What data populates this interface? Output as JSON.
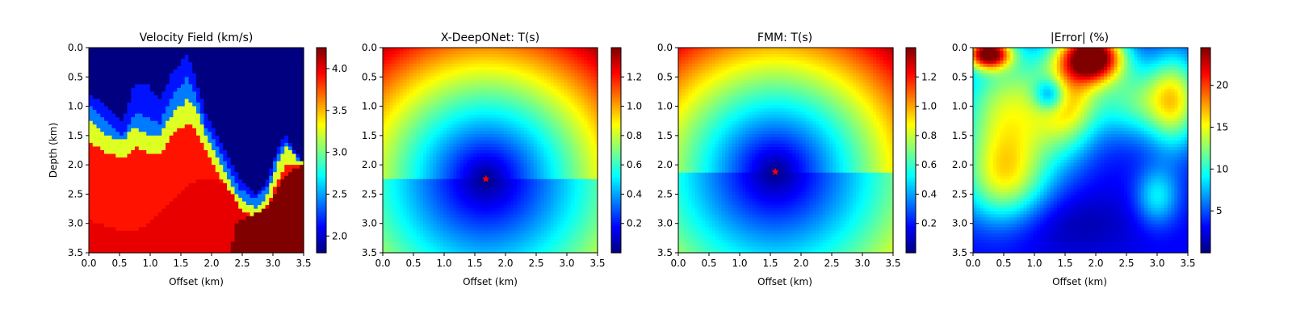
{
  "colors": {
    "colormap": "jet",
    "star": "#ff0000",
    "axis": "#000000"
  },
  "chart_data": [
    {
      "type": "heatmap",
      "title": "Velocity Field (km/s)",
      "xlabel": "Offset (km)",
      "ylabel": "Depth (km)",
      "xlim": [
        0,
        3.5
      ],
      "ylim": [
        3.5,
        0
      ],
      "x_ticks": [
        "0.0",
        "0.5",
        "1.0",
        "1.5",
        "2.0",
        "2.5",
        "3.0",
        "3.5"
      ],
      "y_ticks": [
        "0.0",
        "0.5",
        "1.0",
        "1.5",
        "2.0",
        "2.5",
        "3.0",
        "3.5"
      ],
      "colorbar": {
        "range": [
          1.8,
          4.25
        ],
        "ticks": [
          "2.0",
          "2.5",
          "3.0",
          "3.5",
          "4.0"
        ]
      },
      "field": {
        "kind": "layered_velocity",
        "background_velocity": 1.8,
        "layers": [
          {
            "velocity": 2.15,
            "top_depth_profile": [
              [
                0,
                0.8
              ],
              [
                0.3,
                1.0
              ],
              [
                0.55,
                1.3
              ],
              [
                0.75,
                0.6
              ],
              [
                0.95,
                0.6
              ],
              [
                1.15,
                0.9
              ],
              [
                1.35,
                0.45
              ],
              [
                1.6,
                0.1
              ],
              [
                1.75,
                0.55
              ],
              [
                1.9,
                1.1
              ],
              [
                2.05,
                1.4
              ],
              [
                2.2,
                1.7
              ],
              [
                2.45,
                2.2
              ],
              [
                2.7,
                2.5
              ],
              [
                2.9,
                2.3
              ],
              [
                3.05,
                1.8
              ],
              [
                3.2,
                1.5
              ],
              [
                3.5,
                2.0
              ]
            ]
          },
          {
            "velocity": 2.4,
            "top_depth_profile": [
              [
                0,
                1.0
              ],
              [
                0.3,
                1.3
              ],
              [
                0.55,
                1.5
              ],
              [
                0.75,
                1.1
              ],
              [
                0.95,
                1.2
              ],
              [
                1.15,
                1.3
              ],
              [
                1.35,
                0.85
              ],
              [
                1.6,
                0.5
              ],
              [
                1.75,
                0.8
              ],
              [
                1.9,
                1.35
              ],
              [
                2.05,
                1.6
              ],
              [
                2.2,
                1.9
              ],
              [
                2.45,
                2.4
              ],
              [
                2.7,
                2.6
              ],
              [
                2.9,
                2.4
              ],
              [
                3.05,
                1.9
              ],
              [
                3.2,
                1.6
              ],
              [
                3.5,
                2.0
              ]
            ]
          },
          {
            "velocity": 3.25,
            "top_depth_profile": [
              [
                0,
                1.25
              ],
              [
                0.3,
                1.5
              ],
              [
                0.55,
                1.6
              ],
              [
                0.75,
                1.35
              ],
              [
                0.95,
                1.5
              ],
              [
                1.15,
                1.5
              ],
              [
                1.35,
                1.15
              ],
              [
                1.6,
                0.9
              ],
              [
                1.75,
                1.05
              ],
              [
                1.9,
                1.5
              ],
              [
                2.05,
                1.8
              ],
              [
                2.2,
                2.1
              ],
              [
                2.45,
                2.55
              ],
              [
                2.7,
                2.75
              ],
              [
                2.9,
                2.55
              ],
              [
                3.05,
                2.05
              ],
              [
                3.2,
                1.7
              ],
              [
                3.5,
                2.0
              ]
            ]
          },
          {
            "velocity": 3.9,
            "top_depth_profile": [
              [
                0,
                1.6
              ],
              [
                0.3,
                1.8
              ],
              [
                0.55,
                1.9
              ],
              [
                0.75,
                1.7
              ],
              [
                0.95,
                1.8
              ],
              [
                1.15,
                1.85
              ],
              [
                1.35,
                1.5
              ],
              [
                1.6,
                1.3
              ],
              [
                1.75,
                1.4
              ],
              [
                1.9,
                1.75
              ],
              [
                2.05,
                2.05
              ],
              [
                2.2,
                2.35
              ],
              [
                2.45,
                2.75
              ],
              [
                2.7,
                2.9
              ],
              [
                2.9,
                2.75
              ],
              [
                3.05,
                2.35
              ],
              [
                3.2,
                2.0
              ],
              [
                3.5,
                2.0
              ]
            ]
          },
          {
            "velocity": 4.0,
            "top_depth_profile": [
              [
                0,
                2.95
              ],
              [
                0.3,
                3.05
              ],
              [
                0.6,
                3.15
              ],
              [
                0.8,
                3.1
              ],
              [
                1.0,
                3.0
              ],
              [
                1.2,
                2.8
              ],
              [
                1.4,
                2.55
              ],
              [
                1.6,
                2.35
              ],
              [
                1.8,
                2.25
              ],
              [
                2.0,
                2.25
              ],
              [
                2.2,
                2.3
              ],
              [
                2.4,
                2.6
              ],
              [
                2.6,
                2.95
              ],
              [
                2.8,
                2.85
              ],
              [
                3.0,
                2.6
              ],
              [
                3.2,
                2.2
              ],
              [
                3.5,
                2.0
              ]
            ]
          },
          {
            "velocity": 4.25,
            "top_depth_profile": [
              [
                0,
                3.6
              ],
              [
                2.3,
                3.6
              ],
              [
                2.4,
                3.0
              ],
              [
                2.6,
                2.9
              ],
              [
                2.9,
                2.75
              ],
              [
                3.1,
                2.35
              ],
              [
                3.3,
                2.1
              ],
              [
                3.5,
                2.0
              ]
            ]
          }
        ],
        "grid_cells": 56
      }
    },
    {
      "type": "heatmap",
      "title": "X-DeepONet: T(s)",
      "xlabel": "Offset (km)",
      "ylabel": "",
      "xlim": [
        0,
        3.5
      ],
      "ylim": [
        3.5,
        0
      ],
      "x_ticks": [
        "0.0",
        "0.5",
        "1.0",
        "1.5",
        "2.0",
        "2.5",
        "3.0",
        "3.5"
      ],
      "y_ticks": [
        "0.0",
        "0.5",
        "1.0",
        "1.5",
        "2.0",
        "2.5",
        "3.0",
        "3.5"
      ],
      "colorbar": {
        "range": [
          0,
          1.4
        ],
        "ticks": [
          "0.2",
          "0.4",
          "0.6",
          "0.8",
          "1.0",
          "1.2"
        ]
      },
      "source": {
        "x": 1.68,
        "y": 2.24
      },
      "field": {
        "kind": "traveltime",
        "slowness_above": 0.46,
        "slowness_below": 0.34,
        "depth_weight": 0.05,
        "grid_cells": 64
      }
    },
    {
      "type": "heatmap",
      "title": "FMM: T(s)",
      "xlabel": "Offset (km)",
      "ylabel": "",
      "xlim": [
        0,
        3.5
      ],
      "ylim": [
        3.5,
        0
      ],
      "x_ticks": [
        "0.0",
        "0.5",
        "1.0",
        "1.5",
        "2.0",
        "2.5",
        "3.0",
        "3.5"
      ],
      "y_ticks": [
        "0.0",
        "0.5",
        "1.0",
        "1.5",
        "2.0",
        "2.5",
        "3.0",
        "3.5"
      ],
      "colorbar": {
        "range": [
          0,
          1.4
        ],
        "ticks": [
          "0.2",
          "0.4",
          "0.6",
          "0.8",
          "1.0",
          "1.2"
        ]
      },
      "source": {
        "x": 1.58,
        "y": 2.12
      },
      "field": {
        "kind": "traveltime",
        "slowness_above": 0.46,
        "slowness_below": 0.34,
        "depth_weight": 0.05,
        "grid_cells": 64
      }
    },
    {
      "type": "heatmap",
      "title": "|Error| (%)",
      "xlabel": "Offset (km)",
      "ylabel": "",
      "xlim": [
        0,
        3.5
      ],
      "ylim": [
        3.5,
        0
      ],
      "x_ticks": [
        "0.0",
        "0.5",
        "1.0",
        "1.5",
        "2.0",
        "2.5",
        "3.0",
        "3.5"
      ],
      "y_ticks": [
        "0.0",
        "0.5",
        "1.0",
        "1.5",
        "2.0",
        "2.5",
        "3.0",
        "3.5"
      ],
      "colorbar": {
        "range": [
          0,
          24.5
        ],
        "ticks": [
          "5",
          "10",
          "15",
          "20"
        ]
      },
      "field": {
        "kind": "error_map",
        "base": 3,
        "blobs": [
          {
            "x": 0.25,
            "y": 0.1,
            "sx": 0.25,
            "sy": 0.18,
            "a": 20
          },
          {
            "x": 1.95,
            "y": 0.15,
            "sx": 0.35,
            "sy": 0.3,
            "a": 23
          },
          {
            "x": 0.6,
            "y": 1.1,
            "sx": 0.6,
            "sy": 0.8,
            "a": 11
          },
          {
            "x": 0.5,
            "y": 2.3,
            "sx": 0.5,
            "sy": 0.55,
            "a": 9
          },
          {
            "x": 1.55,
            "y": 0.9,
            "sx": 0.35,
            "sy": 0.6,
            "a": 10
          },
          {
            "x": 2.7,
            "y": 0.9,
            "sx": 0.55,
            "sy": 0.45,
            "a": 8
          },
          {
            "x": 3.3,
            "y": 0.9,
            "sx": 0.3,
            "sy": 0.6,
            "a": 9
          },
          {
            "x": 3.0,
            "y": 2.55,
            "sx": 0.25,
            "sy": 0.35,
            "a": 6
          },
          {
            "x": 1.25,
            "y": 0.8,
            "sx": 0.18,
            "sy": 0.2,
            "a": -8
          },
          {
            "x": 1.5,
            "y": 3.0,
            "sx": 0.9,
            "sy": 0.4,
            "a": -2
          }
        ],
        "grid_cells": 64
      }
    }
  ]
}
